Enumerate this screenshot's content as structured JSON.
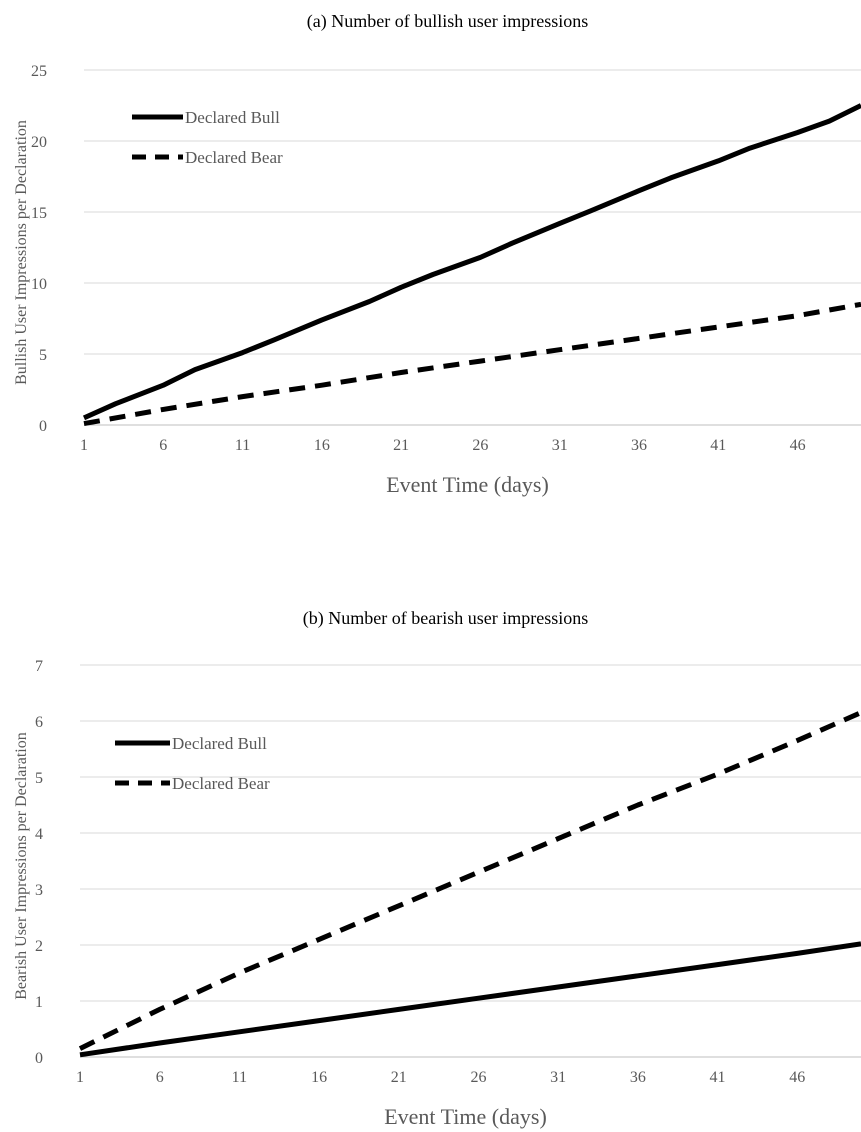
{
  "chart_data": [
    {
      "type": "line",
      "title": "(a) Number of bullish user impressions",
      "xlabel": "Event Time (days)",
      "ylabel": "Bullish User Impressions per Declaration",
      "xlim": [
        1,
        50
      ],
      "ylim": [
        0,
        25
      ],
      "xticks": [
        1,
        6,
        11,
        16,
        21,
        26,
        31,
        36,
        41,
        46
      ],
      "yticks": [
        0,
        5,
        10,
        15,
        20,
        25
      ],
      "grid": "horizontal",
      "legend_position": "top-left",
      "series": [
        {
          "name": "Declared Bull",
          "style": "solid",
          "color": "#000000",
          "x": [
            1,
            3,
            6,
            8,
            11,
            13,
            16,
            19,
            21,
            23,
            26,
            28,
            31,
            33,
            36,
            38,
            41,
            43,
            46,
            48,
            50
          ],
          "y": [
            0.5,
            1.5,
            2.8,
            3.9,
            5.1,
            6.0,
            7.4,
            8.7,
            9.7,
            10.6,
            11.8,
            12.8,
            14.2,
            15.1,
            16.5,
            17.4,
            18.6,
            19.5,
            20.6,
            21.4,
            22.5
          ]
        },
        {
          "name": "Declared Bear",
          "style": "dashed",
          "color": "#000000",
          "x": [
            1,
            6,
            11,
            16,
            21,
            26,
            31,
            36,
            41,
            46,
            50
          ],
          "y": [
            0.1,
            1.1,
            2.0,
            2.8,
            3.7,
            4.5,
            5.3,
            6.1,
            6.9,
            7.7,
            8.5
          ]
        }
      ]
    },
    {
      "type": "line",
      "title": "(b) Number of bearish user impressions",
      "xlabel": "Event Time (days)",
      "ylabel": "Bearish User Impressions per Declaration",
      "xlim": [
        1,
        50
      ],
      "ylim": [
        0,
        7
      ],
      "xticks": [
        1,
        6,
        11,
        16,
        21,
        26,
        31,
        36,
        41,
        46
      ],
      "yticks": [
        0,
        1,
        2,
        3,
        4,
        5,
        6,
        7
      ],
      "grid": "horizontal",
      "legend_position": "top-left",
      "series": [
        {
          "name": "Declared Bull",
          "style": "solid",
          "color": "#000000",
          "x": [
            1,
            6,
            11,
            16,
            21,
            26,
            31,
            36,
            41,
            46,
            50
          ],
          "y": [
            0.04,
            0.25,
            0.45,
            0.65,
            0.85,
            1.05,
            1.25,
            1.45,
            1.65,
            1.85,
            2.02
          ]
        },
        {
          "name": "Declared Bear",
          "style": "dashed",
          "color": "#000000",
          "x": [
            1,
            6,
            11,
            16,
            21,
            26,
            31,
            36,
            41,
            46,
            50
          ],
          "y": [
            0.15,
            0.85,
            1.5,
            2.1,
            2.7,
            3.3,
            3.9,
            4.5,
            5.05,
            5.65,
            6.15
          ]
        }
      ]
    }
  ]
}
